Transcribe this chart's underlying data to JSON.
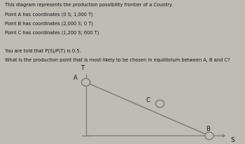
{
  "text_lines": [
    "This diagram represents the production possibility frontier of a Country.",
    "Point A has coordinates (0 S; 1,000 T)",
    "Point B has coordinates (2,000 S; 0 T)",
    "Point C has coordinates (1,200 S; 600 T)",
    "",
    "You are told that P(S)/P(T) is 0.5.",
    "What is the production point that is most likely to be chosen in equilibrium between A, B and C?"
  ],
  "points": {
    "A": [
      0,
      1000
    ],
    "B": [
      2000,
      0
    ],
    "C": [
      1200,
      600
    ]
  },
  "ppf_line": [
    [
      0,
      1000
    ],
    [
      2000,
      0
    ]
  ],
  "axis_labels": {
    "x": "S",
    "y": "T"
  },
  "xlim": [
    -200,
    2500
  ],
  "ylim": [
    -100,
    1300
  ],
  "background_color": "#bfbcb3",
  "line_color": "#7a7872",
  "point_color": "#7a7872",
  "text_color": "#111111",
  "text_fontsize": 4.8,
  "axis_label_fontsize": 6.5,
  "point_label_fontsize": 6.0
}
